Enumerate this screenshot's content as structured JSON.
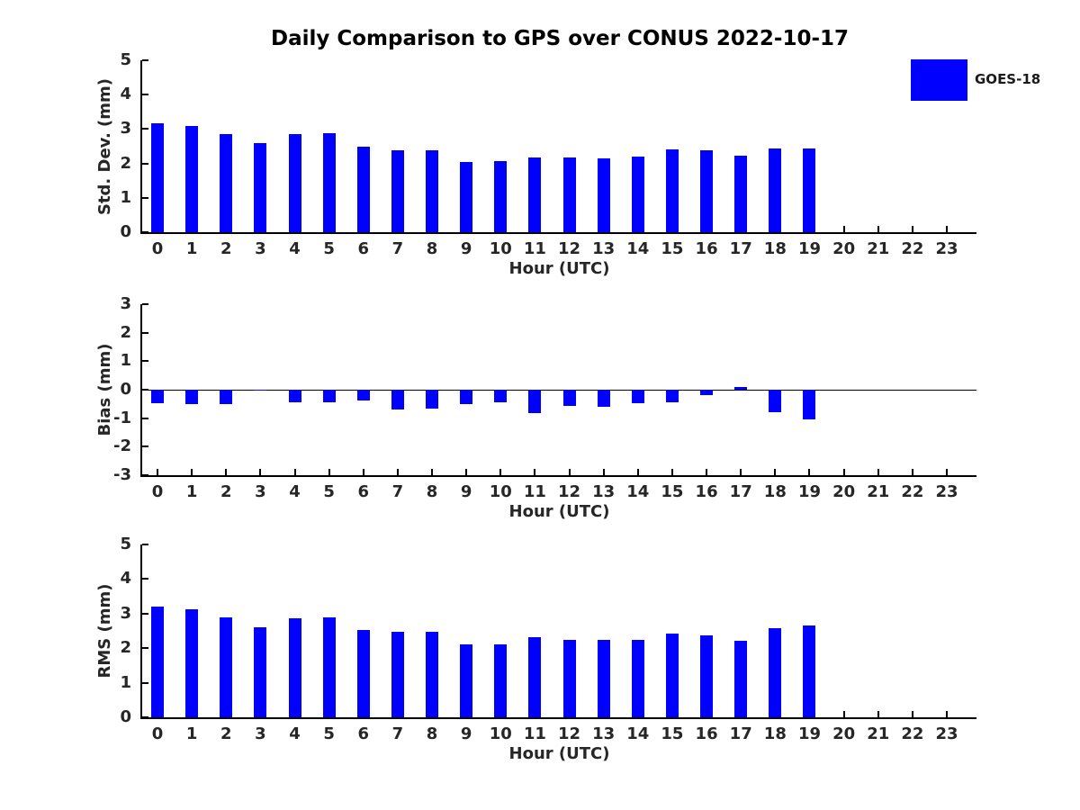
{
  "title": "Daily Comparison to GPS over CONUS 2022-10-17",
  "legend": {
    "label": "GOES-18",
    "color": "#0000ff",
    "position": "top-right"
  },
  "chart_data": [
    {
      "type": "bar",
      "panel": "std-dev",
      "ylabel": "Std. Dev. (mm)",
      "xlabel": "Hour (UTC)",
      "ylim": [
        0,
        5
      ],
      "yticks": [
        0,
        1,
        2,
        3,
        4,
        5
      ],
      "grid": false,
      "categories": [
        "0",
        "1",
        "2",
        "3",
        "4",
        "5",
        "6",
        "7",
        "8",
        "9",
        "10",
        "11",
        "12",
        "13",
        "14",
        "15",
        "16",
        "17",
        "18",
        "19",
        "20",
        "21",
        "22",
        "23"
      ],
      "series": [
        {
          "name": "GOES-18",
          "color": "#0000ff",
          "values": [
            3.18,
            3.1,
            2.86,
            2.6,
            2.86,
            2.89,
            2.49,
            2.38,
            2.39,
            2.04,
            2.07,
            2.18,
            2.17,
            2.14,
            2.2,
            2.4,
            2.37,
            2.23,
            2.44,
            2.44,
            null,
            null,
            null,
            null
          ]
        }
      ]
    },
    {
      "type": "bar",
      "panel": "bias",
      "ylabel": "Bias (mm)",
      "xlabel": "Hour (UTC)",
      "ylim": [
        -3,
        3
      ],
      "yticks": [
        -3,
        -2,
        -1,
        0,
        1,
        2,
        3
      ],
      "zero_line": true,
      "grid": false,
      "categories": [
        "0",
        "1",
        "2",
        "3",
        "4",
        "5",
        "6",
        "7",
        "8",
        "9",
        "10",
        "11",
        "12",
        "13",
        "14",
        "15",
        "16",
        "17",
        "18",
        "19",
        "20",
        "21",
        "22",
        "23"
      ],
      "series": [
        {
          "name": "GOES-18",
          "color": "#0000ff",
          "values": [
            -0.46,
            -0.52,
            -0.5,
            -0.03,
            -0.43,
            -0.45,
            -0.38,
            -0.71,
            -0.67,
            -0.5,
            -0.44,
            -0.81,
            -0.56,
            -0.6,
            -0.46,
            -0.43,
            -0.19,
            0.08,
            -0.79,
            -1.04,
            null,
            null,
            null,
            null
          ]
        }
      ]
    },
    {
      "type": "bar",
      "panel": "rms",
      "ylabel": "RMS (mm)",
      "xlabel": "Hour (UTC)",
      "ylim": [
        0,
        5
      ],
      "yticks": [
        0,
        1,
        2,
        3,
        4,
        5
      ],
      "grid": false,
      "categories": [
        "0",
        "1",
        "2",
        "3",
        "4",
        "5",
        "6",
        "7",
        "8",
        "9",
        "10",
        "11",
        "12",
        "13",
        "14",
        "15",
        "16",
        "17",
        "18",
        "19",
        "20",
        "21",
        "22",
        "23"
      ],
      "series": [
        {
          "name": "GOES-18",
          "color": "#0000ff",
          "values": [
            3.21,
            3.13,
            2.89,
            2.6,
            2.87,
            2.89,
            2.52,
            2.47,
            2.47,
            2.12,
            2.12,
            2.31,
            2.24,
            2.24,
            2.24,
            2.43,
            2.38,
            2.21,
            2.57,
            2.65,
            null,
            null,
            null,
            null
          ]
        }
      ]
    }
  ]
}
